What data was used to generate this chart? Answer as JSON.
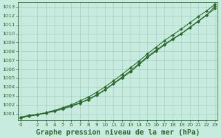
{
  "xlabel": "Graphe pression niveau de la mer (hPa)",
  "x": [
    0,
    1,
    2,
    3,
    4,
    5,
    6,
    7,
    8,
    9,
    10,
    11,
    12,
    13,
    14,
    15,
    16,
    17,
    18,
    19,
    20,
    21,
    22,
    23
  ],
  "line1": [
    1000.6,
    1000.8,
    1000.9,
    1001.1,
    1001.3,
    1001.6,
    1001.9,
    1002.2,
    1002.6,
    1003.1,
    1003.7,
    1004.4,
    1005.1,
    1005.8,
    1006.6,
    1007.4,
    1008.1,
    1008.8,
    1009.4,
    1010.0,
    1010.7,
    1011.4,
    1012.1,
    1012.8
  ],
  "line2": [
    1000.5,
    1000.7,
    1000.85,
    1001.05,
    1001.25,
    1001.5,
    1001.8,
    1002.15,
    1002.55,
    1003.05,
    1003.65,
    1004.35,
    1005.0,
    1005.7,
    1006.5,
    1007.3,
    1008.0,
    1008.7,
    1009.35,
    1009.95,
    1010.65,
    1011.35,
    1012.05,
    1013.1
  ],
  "line3": [
    1000.55,
    1000.75,
    1000.9,
    1001.1,
    1001.35,
    1001.65,
    1002.0,
    1002.4,
    1002.85,
    1003.4,
    1004.0,
    1004.7,
    1005.4,
    1006.15,
    1006.9,
    1007.7,
    1008.45,
    1009.2,
    1009.85,
    1010.5,
    1011.2,
    1011.9,
    1012.55,
    1013.3
  ],
  "line_color": "#2d6a2d",
  "bg_color": "#c8ebe0",
  "grid_color": "#9dc8b4",
  "ylim_min": 1000.3,
  "ylim_max": 1013.5,
  "yticks": [
    1001,
    1002,
    1003,
    1004,
    1005,
    1006,
    1007,
    1008,
    1009,
    1010,
    1011,
    1012,
    1013
  ],
  "xticks": [
    0,
    2,
    3,
    4,
    5,
    6,
    7,
    8,
    9,
    10,
    11,
    12,
    13,
    14,
    15,
    16,
    17,
    18,
    19,
    20,
    21,
    22,
    23
  ],
  "marker": "D",
  "marker_size": 2.2,
  "linewidth": 0.8,
  "xlabel_fontsize": 7.5,
  "tick_fontsize": 5.2,
  "line_color_dark": "#1e4d1e"
}
